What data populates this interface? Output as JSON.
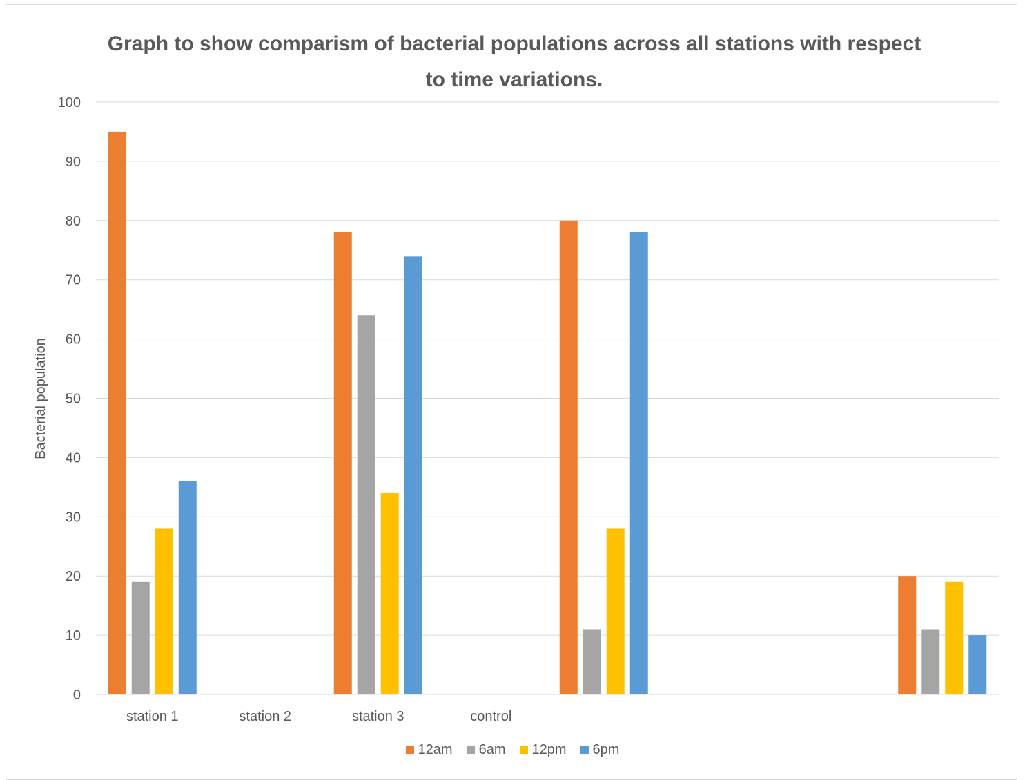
{
  "chart_data": {
    "type": "bar",
    "title": "Graph to show comparism of bacterial populations across all stations with respect to time variations.",
    "ylabel": "Bacterial population",
    "xlabel": "",
    "ylim": [
      0,
      100
    ],
    "yticks": [
      0,
      10,
      20,
      30,
      40,
      50,
      60,
      70,
      80,
      90,
      100
    ],
    "grid": true,
    "legend_position": "bottom",
    "category_slots": 8,
    "category_labels": [
      {
        "slot": 0,
        "label": "station 1"
      },
      {
        "slot": 1,
        "label": "station 2"
      },
      {
        "slot": 2,
        "label": "station 3"
      },
      {
        "slot": 3,
        "label": "control"
      }
    ],
    "series": [
      {
        "name": "12am",
        "color": "#ED7D31",
        "values": [
          {
            "slot": 0,
            "value": 95
          },
          {
            "slot": 2,
            "value": 78
          },
          {
            "slot": 4,
            "value": 80
          },
          {
            "slot": 7,
            "value": 20
          }
        ]
      },
      {
        "name": "6am",
        "color": "#A5A5A5",
        "values": [
          {
            "slot": 0,
            "value": 19
          },
          {
            "slot": 2,
            "value": 64
          },
          {
            "slot": 4,
            "value": 11
          },
          {
            "slot": 7,
            "value": 11
          }
        ]
      },
      {
        "name": "12pm",
        "color": "#FFC000",
        "values": [
          {
            "slot": 0,
            "value": 28
          },
          {
            "slot": 2,
            "value": 34
          },
          {
            "slot": 4,
            "value": 28
          },
          {
            "slot": 7,
            "value": 19
          }
        ]
      },
      {
        "name": "6pm",
        "color": "#5B9BD5",
        "values": [
          {
            "slot": 0,
            "value": 36
          },
          {
            "slot": 2,
            "value": 74
          },
          {
            "slot": 4,
            "value": 78
          },
          {
            "slot": 7,
            "value": 10
          }
        ]
      }
    ]
  }
}
